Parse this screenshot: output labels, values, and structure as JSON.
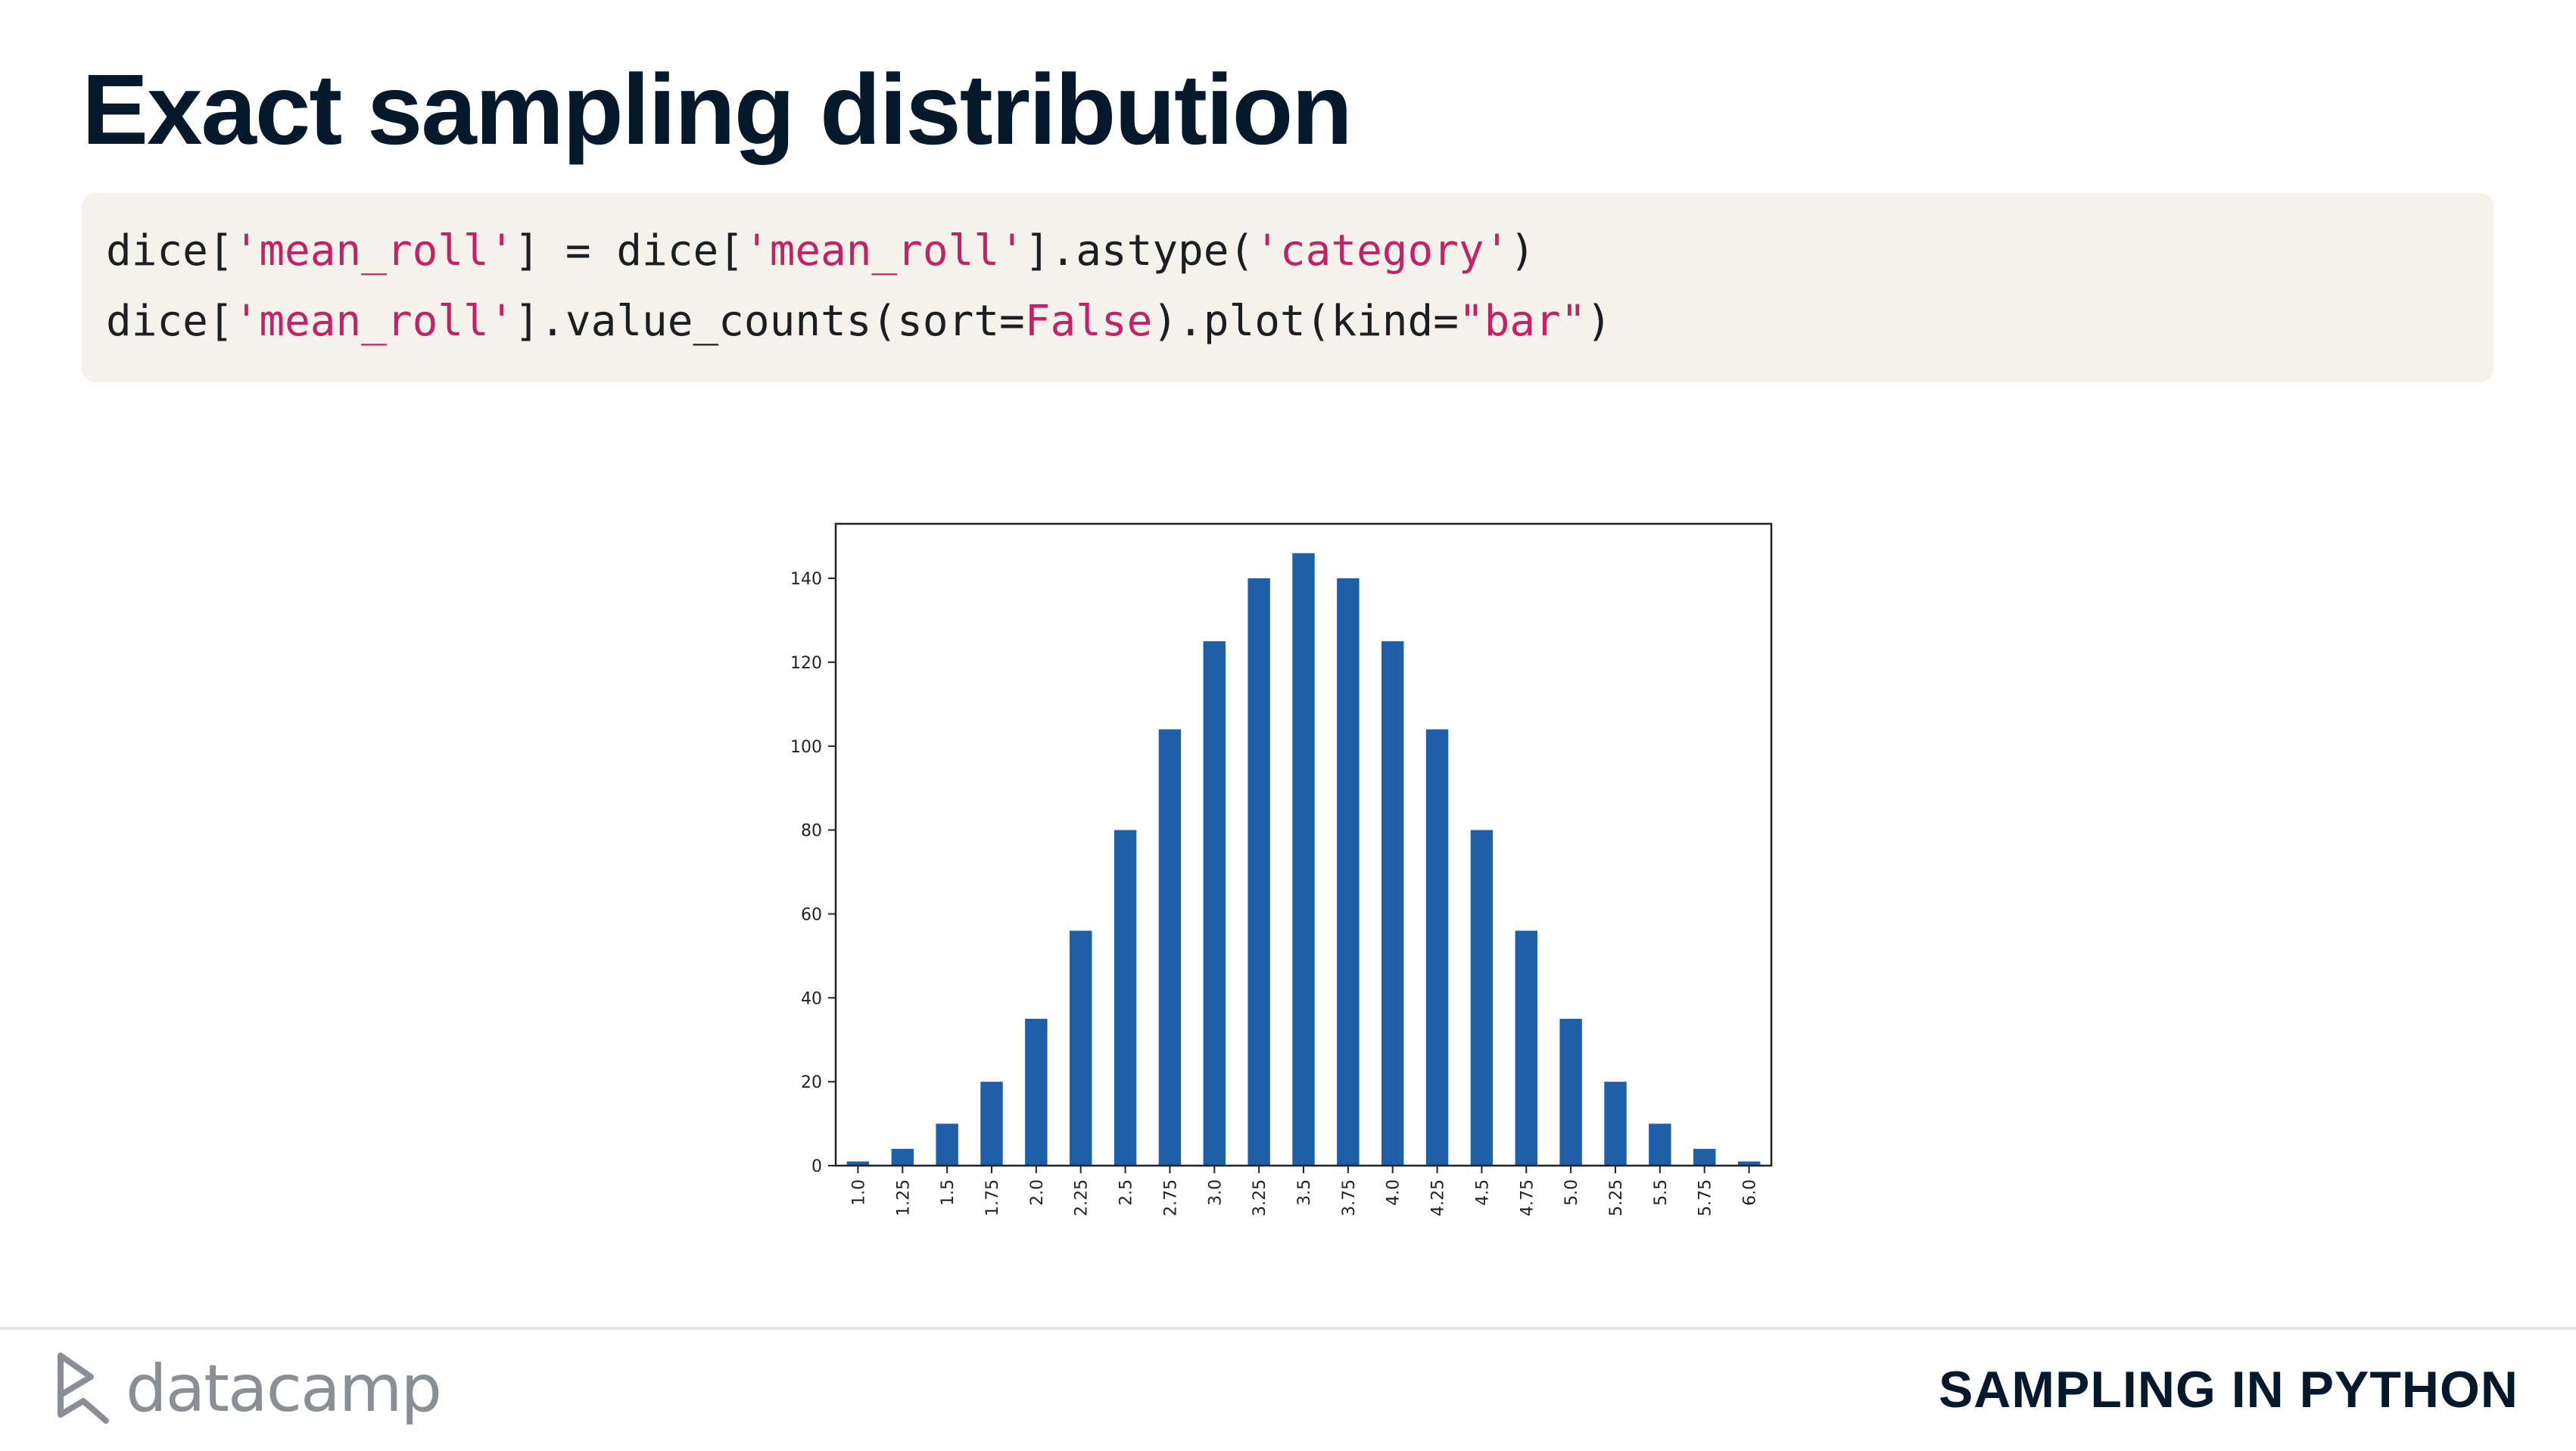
{
  "slide": {
    "title": "Exact sampling distribution",
    "course": "SAMPLING IN PYTHON",
    "brand": "datacamp"
  },
  "code": {
    "line1": [
      {
        "t": "dice[",
        "c": "plain"
      },
      {
        "t": "'mean_roll'",
        "c": "str"
      },
      {
        "t": "] = dice[",
        "c": "plain"
      },
      {
        "t": "'mean_roll'",
        "c": "str"
      },
      {
        "t": "].astype(",
        "c": "plain"
      },
      {
        "t": "'category'",
        "c": "str"
      },
      {
        "t": ")",
        "c": "plain"
      }
    ],
    "line2": [
      {
        "t": "dice[",
        "c": "plain"
      },
      {
        "t": "'mean_roll'",
        "c": "str"
      },
      {
        "t": "].value_counts(sort=",
        "c": "plain"
      },
      {
        "t": "False",
        "c": "str"
      },
      {
        "t": ").plot(kind=",
        "c": "plain"
      },
      {
        "t": "\"bar\"",
        "c": "str"
      },
      {
        "t": ")",
        "c": "plain"
      }
    ]
  },
  "colors": {
    "bar": "#1f5ea8",
    "string": "#c32266",
    "title": "#05192d"
  },
  "chart_data": {
    "type": "bar",
    "title": "",
    "xlabel": "",
    "ylabel": "",
    "categories": [
      "1.0",
      "1.25",
      "1.5",
      "1.75",
      "2.0",
      "2.25",
      "2.5",
      "2.75",
      "3.0",
      "3.25",
      "3.5",
      "3.75",
      "4.0",
      "4.25",
      "4.5",
      "4.75",
      "5.0",
      "5.25",
      "5.5",
      "5.75",
      "6.0"
    ],
    "values": [
      1,
      4,
      10,
      20,
      35,
      56,
      80,
      104,
      125,
      140,
      146,
      140,
      125,
      104,
      80,
      56,
      35,
      20,
      10,
      4,
      1
    ],
    "ylim": [
      0,
      153
    ],
    "yticks": [
      0,
      20,
      40,
      60,
      80,
      100,
      120,
      140
    ],
    "grid": false,
    "legend": "none"
  }
}
